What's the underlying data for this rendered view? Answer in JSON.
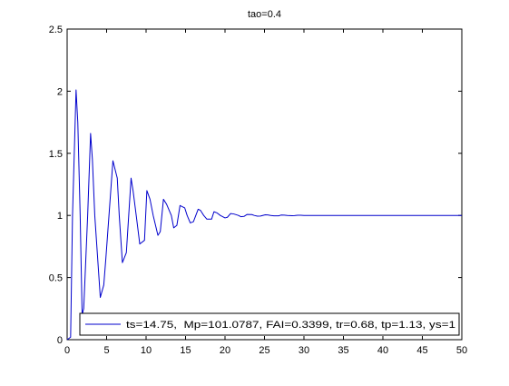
{
  "chart_data": {
    "type": "line",
    "title": "tao=0.4",
    "xlabel": "",
    "ylabel": "",
    "xlim": [
      0,
      50
    ],
    "ylim": [
      0,
      2.5
    ],
    "xticks": [
      0,
      5,
      10,
      15,
      20,
      25,
      30,
      35,
      40,
      45,
      50
    ],
    "yticks": [
      0,
      0.5,
      1,
      1.5,
      2,
      2.5
    ],
    "xtick_labels": [
      "0",
      "5",
      "10",
      "15",
      "20",
      "25",
      "30",
      "35",
      "40",
      "45",
      "50"
    ],
    "ytick_labels": [
      "0",
      "0.5",
      "1",
      "1.5",
      "2",
      "2.5"
    ],
    "grid": false,
    "legend_position": "bottom-right",
    "line_color": "#0000cc",
    "series": [
      {
        "name": "ts=14.75,  Mp=101.0787, FAI=0.3399, tr=0.68, tp=1.13, ys=1",
        "color": "#0000cc",
        "x": [
          0,
          0.44,
          0.68,
          1.13,
          1.35,
          1.65,
          1.9,
          2.1,
          2.6,
          2.97,
          3.2,
          3.5,
          4.2,
          4.64,
          4.9,
          5.3,
          5.8,
          6.35,
          6.6,
          7.0,
          7.5,
          8.1,
          8.35,
          8.75,
          9.2,
          9.8,
          10.1,
          10.5,
          10.9,
          11.5,
          11.8,
          12.2,
          12.6,
          13.2,
          13.5,
          13.9,
          14.3,
          14.9,
          15.2,
          15.6,
          16.0,
          16.6,
          16.9,
          17.3,
          17.7,
          18.3,
          18.6,
          19.0,
          19.4,
          20.0,
          20.3,
          20.7,
          21.1,
          21.7,
          22.0,
          22.4,
          22.8,
          23.4,
          23.7,
          24.1,
          24.5,
          25.1,
          25.4,
          25.8,
          26.2,
          26.8,
          27.1,
          27.5,
          27.9,
          28.5,
          28.8,
          29.2,
          29.6,
          30.0,
          35,
          40,
          45,
          50
        ],
        "y": [
          0,
          0.02,
          1.0,
          2.01,
          1.75,
          1.0,
          0.2,
          0.25,
          1.0,
          1.66,
          1.45,
          1.0,
          0.34,
          0.44,
          0.65,
          1.0,
          1.44,
          1.3,
          1.0,
          0.62,
          0.7,
          1.3,
          1.2,
          1.0,
          0.77,
          0.8,
          1.2,
          1.13,
          1.0,
          0.84,
          0.87,
          1.13,
          1.09,
          1.0,
          0.9,
          0.92,
          1.08,
          1.06,
          1.0,
          0.94,
          0.95,
          1.05,
          1.04,
          1.0,
          0.97,
          0.97,
          1.03,
          1.02,
          1.0,
          0.98,
          0.985,
          1.015,
          1.012,
          1.0,
          0.99,
          0.992,
          1.008,
          1.007,
          1.0,
          0.994,
          0.995,
          1.005,
          1.004,
          1.0,
          0.997,
          0.997,
          1.003,
          1.002,
          1.0,
          0.998,
          0.999,
          1.001,
          1.001,
          1.0,
          1.0,
          1.0,
          1.0,
          1.0
        ]
      }
    ]
  }
}
